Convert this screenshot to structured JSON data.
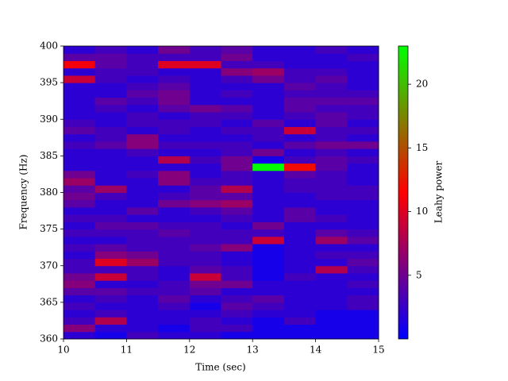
{
  "chart_data": {
    "type": "heatmap",
    "x_label": "Time (sec)",
    "y_label": "Frequency (Hz)",
    "colorbar_label": "Leahy power",
    "xlim": [
      10,
      15
    ],
    "ylim": [
      360,
      400
    ],
    "xticks": [
      10,
      11,
      12,
      13,
      14,
      15
    ],
    "yticks": [
      360,
      365,
      370,
      375,
      380,
      385,
      390,
      395,
      400
    ],
    "clim": [
      0,
      23
    ],
    "cticks": [
      5,
      10,
      15,
      20
    ],
    "colormap": [
      "#0000ff",
      "#ff0000",
      "#00ff00"
    ],
    "z": [
      [
        2,
        1,
        3,
        2,
        2,
        1,
        1,
        1,
        1,
        1
      ],
      [
        6,
        2,
        2,
        1,
        3,
        3,
        1,
        1,
        1,
        1
      ],
      [
        3,
        8,
        2,
        2,
        3,
        2,
        1,
        3,
        1,
        1
      ],
      [
        2,
        3,
        2,
        2,
        2,
        3,
        2,
        2,
        1,
        1
      ],
      [
        3,
        2,
        2,
        3,
        1,
        4,
        3,
        2,
        2,
        3
      ],
      [
        2,
        3,
        2,
        4,
        2,
        3,
        4,
        2,
        2,
        3
      ],
      [
        4,
        4,
        3,
        3,
        4,
        2,
        2,
        2,
        2,
        2
      ],
      [
        6,
        2,
        2,
        3,
        5,
        5,
        2,
        2,
        2,
        3
      ],
      [
        5,
        9,
        3,
        2,
        9,
        3,
        1,
        3,
        2,
        2
      ],
      [
        3,
        3,
        3,
        2,
        4,
        3,
        1,
        2,
        8,
        3
      ],
      [
        3,
        10,
        7,
        3,
        3,
        2,
        1,
        2,
        2,
        4
      ],
      [
        2,
        6,
        5,
        3,
        3,
        2,
        1,
        2,
        3,
        3
      ],
      [
        3,
        4,
        3,
        3,
        4,
        6,
        1,
        2,
        2,
        2
      ],
      [
        2,
        2,
        3,
        3,
        3,
        3,
        9,
        2,
        7,
        4
      ],
      [
        3,
        3,
        3,
        4,
        3,
        3,
        3,
        2,
        4,
        3
      ],
      [
        2,
        4,
        4,
        3,
        3,
        2,
        5,
        2,
        2,
        2
      ],
      [
        3,
        3,
        2,
        2,
        2,
        3,
        2,
        4,
        3,
        2
      ],
      [
        2,
        2,
        4,
        2,
        3,
        4,
        2,
        4,
        2,
        2
      ],
      [
        4,
        2,
        2,
        5,
        6,
        7,
        2,
        2,
        2,
        2
      ],
      [
        5,
        3,
        2,
        3,
        4,
        4,
        2,
        2,
        3,
        3
      ],
      [
        4,
        7,
        2,
        2,
        4,
        8,
        2,
        3,
        3,
        3
      ],
      [
        7,
        2,
        2,
        6,
        3,
        3,
        2,
        3,
        3,
        2
      ],
      [
        5,
        2,
        3,
        6,
        2,
        3,
        2,
        4,
        3,
        2
      ],
      [
        2,
        2,
        2,
        2,
        2,
        5,
        23,
        12,
        4,
        2
      ],
      [
        2,
        2,
        2,
        8,
        3,
        5,
        1,
        3,
        4,
        3
      ],
      [
        2,
        2,
        3,
        2,
        2,
        3,
        5,
        2,
        3,
        2
      ],
      [
        3,
        4,
        6,
        3,
        3,
        3,
        2,
        4,
        5,
        5
      ],
      [
        2,
        3,
        6,
        2,
        2,
        2,
        3,
        2,
        3,
        2
      ],
      [
        4,
        3,
        2,
        3,
        2,
        3,
        3,
        9,
        3,
        3
      ],
      [
        3,
        2,
        3,
        3,
        3,
        2,
        4,
        2,
        4,
        2
      ],
      [
        2,
        2,
        3,
        2,
        3,
        3,
        2,
        3,
        4,
        3
      ],
      [
        2,
        3,
        2,
        4,
        5,
        4,
        2,
        4,
        3,
        3
      ],
      [
        2,
        4,
        3,
        5,
        2,
        2,
        2,
        4,
        4,
        4
      ],
      [
        2,
        2,
        4,
        5,
        2,
        3,
        2,
        3,
        3,
        3
      ],
      [
        2,
        2,
        3,
        4,
        2,
        2,
        2,
        4,
        3,
        2
      ],
      [
        9,
        3,
        2,
        3,
        2,
        3,
        5,
        3,
        4,
        2
      ],
      [
        2,
        3,
        3,
        2,
        2,
        6,
        7,
        3,
        3,
        2
      ],
      [
        11,
        4,
        3,
        10,
        10,
        3,
        3,
        2,
        2,
        2
      ],
      [
        4,
        4,
        3,
        3,
        3,
        5,
        2,
        2,
        2,
        3
      ],
      [
        2,
        3,
        2,
        5,
        3,
        4,
        2,
        2,
        3,
        2
      ]
    ]
  }
}
